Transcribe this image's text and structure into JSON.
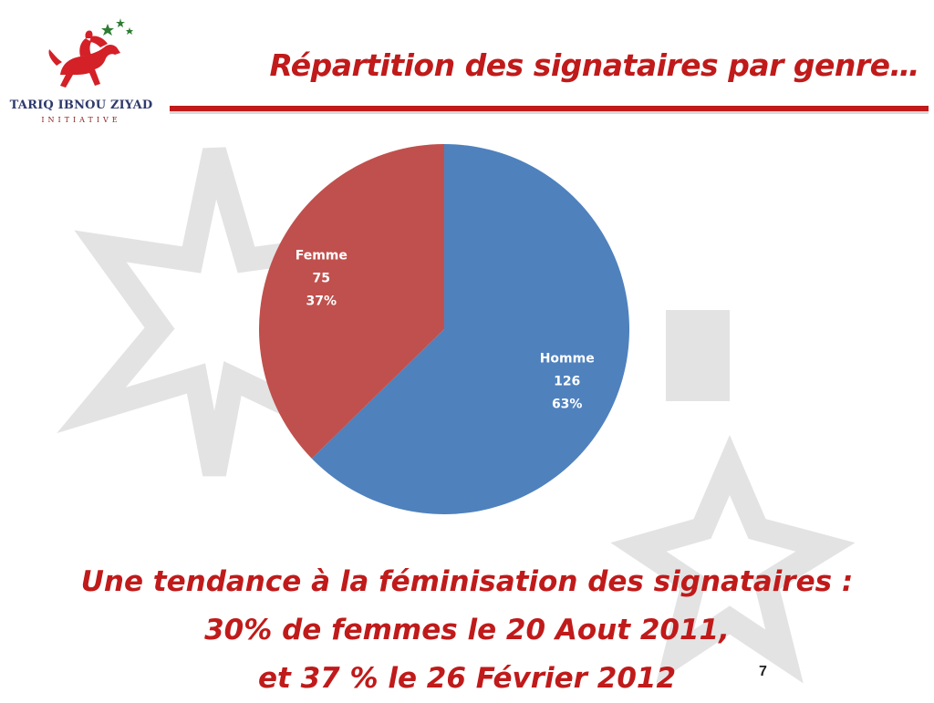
{
  "logo": {
    "name": "TARIQ IBNOU ZIYAD",
    "subtitle": "INITIATIVE",
    "colors": {
      "red": "#d42027",
      "green": "#2e7d32",
      "navy": "#2f3a6b"
    }
  },
  "slide": {
    "title": "Répartition des signataires par genre…",
    "conclusion_lines": [
      "Une tendance à la féminisation des signataires :",
      "30% de femmes le 20 Aout 2011,",
      "et 37 % le 26  Février 2012"
    ],
    "page_number": "7",
    "accent_color": "#c01a1a"
  },
  "chart_data": {
    "type": "pie",
    "slices": [
      {
        "label": "Homme",
        "value": 126,
        "percent": "63%",
        "color": "#4f81bd"
      },
      {
        "label": "Femme",
        "value": 75,
        "percent": "37%",
        "color": "#c0504d"
      }
    ],
    "start_angle_deg": 0,
    "direction": "clockwise",
    "legend": "none"
  }
}
